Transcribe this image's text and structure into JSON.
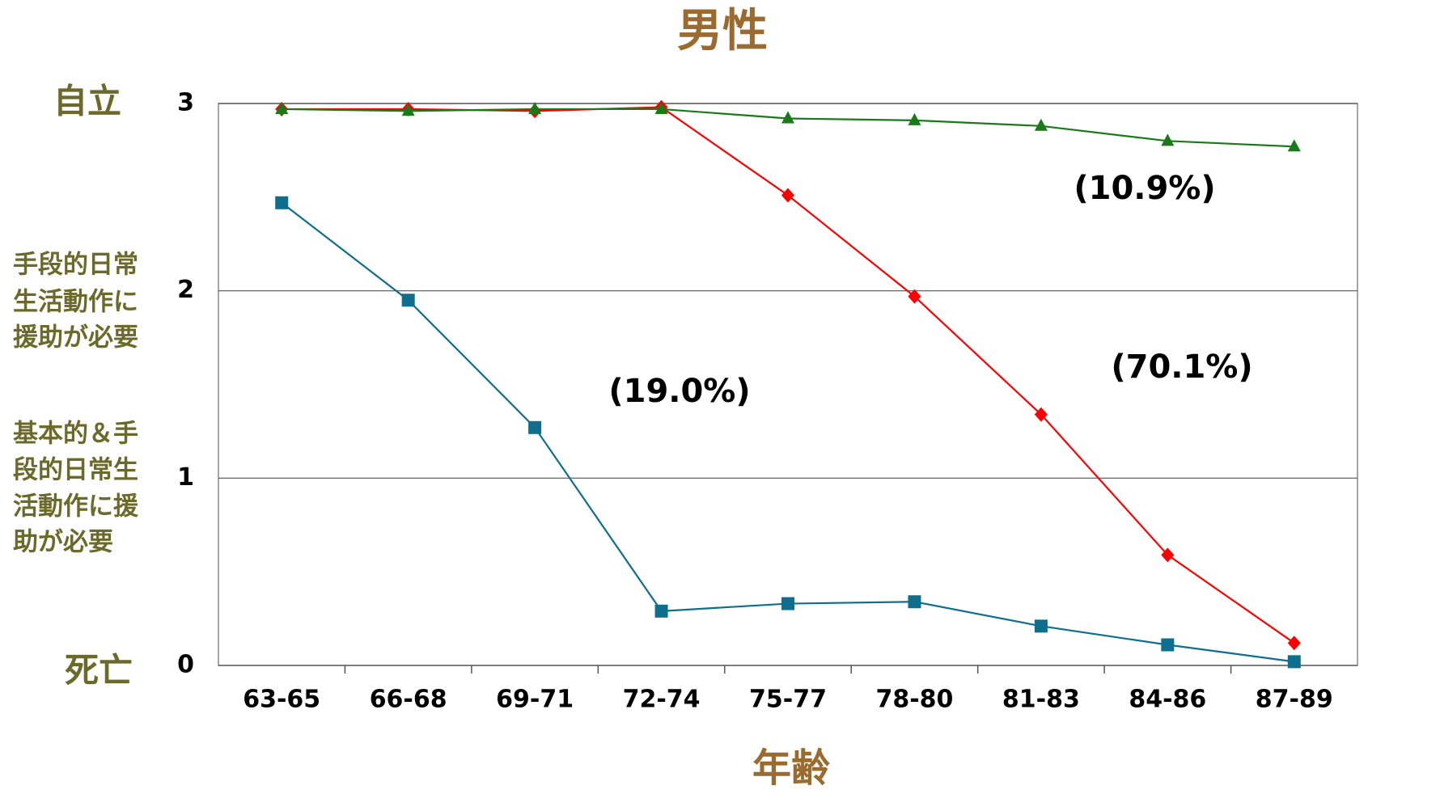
{
  "chart_data": {
    "type": "line",
    "title": "男性",
    "x_label": "年齢",
    "categories": [
      "63-65",
      "66-68",
      "69-71",
      "72-74",
      "75-77",
      "78-80",
      "81-83",
      "84-86",
      "87-89"
    ],
    "series": [
      {
        "color": "#0e6e8e",
        "marker": "square",
        "values": [
          2.47,
          1.95,
          1.27,
          0.29,
          0.33,
          0.34,
          0.21,
          0.11,
          0.02
        ]
      },
      {
        "color": "#ff0000",
        "marker": "diamond",
        "values": [
          2.97,
          2.97,
          2.96,
          2.98,
          2.51,
          1.97,
          1.34,
          0.59,
          0.12
        ]
      },
      {
        "color": "#1a7a1a",
        "marker": "triangle",
        "values": [
          2.97,
          2.96,
          2.97,
          2.97,
          2.92,
          2.91,
          2.88,
          2.8,
          2.77
        ]
      }
    ],
    "ylim": [
      0,
      3
    ],
    "yticks": [
      0,
      1,
      2,
      3
    ],
    "grid": true,
    "y_category_labels": [
      {
        "lines": [
          "自立"
        ]
      },
      {
        "lines": [
          "手段的日常",
          "生活動作に",
          "援助が必要"
        ]
      },
      {
        "lines": [
          "基本的＆手",
          "段的日常生",
          "活動作に援",
          "助が必要"
        ]
      },
      {
        "lines": [
          "死亡"
        ]
      }
    ],
    "annotations": [
      "(10.9%)",
      "(70.1%)",
      "(19.0%)"
    ]
  }
}
